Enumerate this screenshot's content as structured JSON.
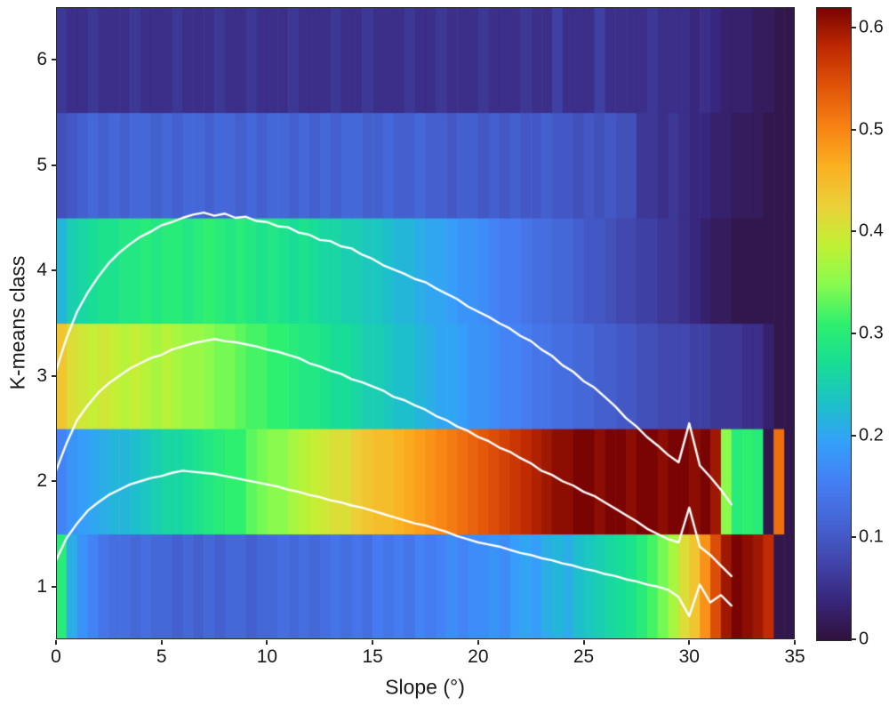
{
  "chart_data": {
    "type": "heatmap",
    "title": "",
    "xlabel": "Slope (°)",
    "ylabel": "K-means class",
    "xlim": [
      0,
      35
    ],
    "ylim": [
      0.5,
      6.5
    ],
    "xticks": [
      0,
      5,
      10,
      15,
      20,
      25,
      30,
      35
    ],
    "xtick_labels": [
      "0",
      "5",
      "10",
      "15",
      "20",
      "25",
      "30",
      "35"
    ],
    "yticks": [
      1,
      2,
      3,
      4,
      5,
      6
    ],
    "ytick_labels": [
      "1",
      "2",
      "3",
      "4",
      "5",
      "6"
    ],
    "vmin": 0,
    "vmax": 0.62,
    "background": "#ffffff",
    "text_color": "#1a1a1a",
    "x_bin_start": 0,
    "x_bin_step": 0.5,
    "colormap": {
      "name": "turbo",
      "stops": [
        "#30123b",
        "#38267c",
        "#4146ac",
        "#4565d5",
        "#457ff5",
        "#34a0fa",
        "#1dc1c9",
        "#18de94",
        "#2ef06f",
        "#88fb4e",
        "#c1f134",
        "#ecd139",
        "#fbb021",
        "#f88213",
        "#e25509",
        "#c02a02",
        "#7a0403"
      ]
    },
    "grid": {
      "row_order": "class 1 (bottom) to class 6 (top)",
      "values": [
        [
          0.3,
          0.21,
          0.18,
          0.16,
          0.14,
          0.13,
          0.13,
          0.12,
          0.13,
          0.12,
          0.12,
          0.11,
          0.12,
          0.11,
          0.12,
          0.11,
          0.12,
          0.12,
          0.11,
          0.12,
          0.12,
          0.13,
          0.12,
          0.13,
          0.12,
          0.13,
          0.14,
          0.13,
          0.14,
          0.13,
          0.15,
          0.14,
          0.15,
          0.14,
          0.16,
          0.15,
          0.16,
          0.17,
          0.16,
          0.17,
          0.17,
          0.18,
          0.17,
          0.19,
          0.2,
          0.19,
          0.21,
          0.22,
          0.21,
          0.23,
          0.24,
          0.25,
          0.26,
          0.27,
          0.28,
          0.3,
          0.32,
          0.34,
          0.37,
          0.41,
          0.44,
          0.49,
          0.55,
          0.6,
          0.62,
          0.61,
          0.6,
          0.58,
          0.01,
          0.01
        ],
        [
          0.16,
          0.18,
          0.19,
          0.2,
          0.21,
          0.22,
          0.22,
          0.23,
          0.24,
          0.25,
          0.26,
          0.26,
          0.27,
          0.28,
          0.29,
          0.3,
          0.31,
          0.31,
          0.33,
          0.34,
          0.35,
          0.35,
          0.37,
          0.38,
          0.39,
          0.4,
          0.41,
          0.41,
          0.43,
          0.44,
          0.45,
          0.45,
          0.46,
          0.47,
          0.48,
          0.49,
          0.5,
          0.51,
          0.52,
          0.53,
          0.54,
          0.55,
          0.56,
          0.57,
          0.58,
          0.59,
          0.6,
          0.61,
          0.61,
          0.62,
          0.62,
          0.61,
          0.62,
          0.62,
          0.61,
          0.62,
          0.62,
          0.61,
          0.62,
          0.62,
          0.61,
          0.62,
          0.6,
          0.35,
          0.3,
          0.31,
          0.3,
          0.01,
          0.52,
          0.01
        ],
        [
          0.44,
          0.41,
          0.4,
          0.39,
          0.4,
          0.39,
          0.38,
          0.39,
          0.38,
          0.37,
          0.38,
          0.37,
          0.36,
          0.36,
          0.35,
          0.34,
          0.34,
          0.33,
          0.32,
          0.32,
          0.31,
          0.31,
          0.3,
          0.29,
          0.29,
          0.28,
          0.27,
          0.27,
          0.26,
          0.25,
          0.25,
          0.24,
          0.23,
          0.23,
          0.22,
          0.21,
          0.2,
          0.2,
          0.19,
          0.18,
          0.18,
          0.17,
          0.16,
          0.16,
          0.15,
          0.14,
          0.14,
          0.13,
          0.13,
          0.12,
          0.12,
          0.11,
          0.11,
          0.1,
          0.1,
          0.09,
          0.09,
          0.08,
          0.08,
          0.08,
          0.07,
          0.07,
          0.06,
          0.06,
          0.06,
          0.05,
          0.05,
          0.03,
          0.01,
          0.01
        ],
        [
          0.22,
          0.25,
          0.26,
          0.27,
          0.28,
          0.28,
          0.29,
          0.29,
          0.3,
          0.29,
          0.3,
          0.3,
          0.29,
          0.3,
          0.31,
          0.3,
          0.29,
          0.3,
          0.29,
          0.28,
          0.29,
          0.28,
          0.27,
          0.28,
          0.27,
          0.26,
          0.26,
          0.25,
          0.25,
          0.24,
          0.24,
          0.23,
          0.22,
          0.22,
          0.21,
          0.2,
          0.2,
          0.19,
          0.18,
          0.18,
          0.17,
          0.16,
          0.15,
          0.15,
          0.14,
          0.13,
          0.13,
          0.12,
          0.12,
          0.11,
          0.1,
          0.1,
          0.09,
          0.08,
          0.08,
          0.07,
          0.07,
          0.06,
          0.06,
          0.05,
          0.04,
          0.03,
          0.02,
          0.02,
          0.01,
          0.01,
          0.01,
          0.01,
          0.01,
          0.01
        ],
        [
          0.09,
          0.1,
          0.11,
          0.12,
          0.11,
          0.12,
          0.11,
          0.12,
          0.12,
          0.11,
          0.12,
          0.11,
          0.12,
          0.12,
          0.11,
          0.12,
          0.12,
          0.11,
          0.12,
          0.11,
          0.12,
          0.12,
          0.11,
          0.12,
          0.11,
          0.12,
          0.11,
          0.12,
          0.12,
          0.11,
          0.11,
          0.12,
          0.11,
          0.11,
          0.12,
          0.11,
          0.11,
          0.1,
          0.11,
          0.11,
          0.1,
          0.11,
          0.1,
          0.11,
          0.1,
          0.1,
          0.11,
          0.1,
          0.1,
          0.09,
          0.1,
          0.09,
          0.1,
          0.09,
          0.09,
          0.06,
          0.06,
          0.05,
          0.06,
          0.05,
          0.04,
          0.04,
          0.03,
          0.03,
          0.02,
          0.02,
          0.02,
          0.01,
          0.01,
          0.01
        ],
        [
          0.06,
          0.05,
          0.05,
          0.06,
          0.05,
          0.05,
          0.05,
          0.06,
          0.05,
          0.05,
          0.05,
          0.06,
          0.05,
          0.05,
          0.05,
          0.06,
          0.05,
          0.05,
          0.06,
          0.05,
          0.05,
          0.05,
          0.06,
          0.05,
          0.05,
          0.05,
          0.06,
          0.05,
          0.05,
          0.06,
          0.05,
          0.05,
          0.05,
          0.06,
          0.05,
          0.05,
          0.06,
          0.05,
          0.05,
          0.05,
          0.06,
          0.05,
          0.05,
          0.05,
          0.06,
          0.05,
          0.05,
          0.07,
          0.05,
          0.05,
          0.05,
          0.07,
          0.05,
          0.05,
          0.05,
          0.05,
          0.06,
          0.05,
          0.05,
          0.05,
          0.04,
          0.05,
          0.04,
          0.03,
          0.03,
          0.03,
          0.02,
          0.02,
          0.01,
          0.01
        ]
      ]
    },
    "overlay_lines": {
      "color": "#ffffff",
      "x_start": 0,
      "x_step": 0.5,
      "series": [
        {
          "name": "upper-curve",
          "values": [
            3.05,
            3.36,
            3.61,
            3.79,
            3.94,
            4.07,
            4.17,
            4.25,
            4.32,
            4.37,
            4.43,
            4.46,
            4.5,
            4.53,
            4.55,
            4.52,
            4.54,
            4.5,
            4.51,
            4.47,
            4.46,
            4.42,
            4.41,
            4.36,
            4.34,
            4.29,
            4.28,
            4.23,
            4.21,
            4.15,
            4.11,
            4.05,
            4.01,
            3.97,
            3.92,
            3.89,
            3.83,
            3.78,
            3.73,
            3.66,
            3.61,
            3.56,
            3.5,
            3.45,
            3.38,
            3.33,
            3.25,
            3.19,
            3.1,
            3.04,
            2.95,
            2.89,
            2.8,
            2.71,
            2.6,
            2.52,
            2.42,
            2.34,
            2.25,
            2.18,
            2.55,
            2.15,
            2.04,
            1.92,
            1.78
          ]
        },
        {
          "name": "middle-curve",
          "values": [
            2.1,
            2.36,
            2.58,
            2.72,
            2.84,
            2.93,
            3.0,
            3.07,
            3.12,
            3.17,
            3.2,
            3.25,
            3.28,
            3.31,
            3.33,
            3.35,
            3.33,
            3.32,
            3.3,
            3.28,
            3.25,
            3.23,
            3.2,
            3.17,
            3.12,
            3.09,
            3.05,
            3.02,
            2.97,
            2.94,
            2.9,
            2.86,
            2.8,
            2.77,
            2.72,
            2.68,
            2.62,
            2.58,
            2.52,
            2.48,
            2.42,
            2.38,
            2.32,
            2.28,
            2.22,
            2.17,
            2.1,
            2.06,
            2.0,
            1.96,
            1.9,
            1.86,
            1.8,
            1.74,
            1.68,
            1.62,
            1.55,
            1.5,
            1.45,
            1.42,
            1.75,
            1.38,
            1.3,
            1.2,
            1.1
          ]
        },
        {
          "name": "lower-curve",
          "values": [
            1.25,
            1.46,
            1.6,
            1.72,
            1.8,
            1.87,
            1.92,
            1.97,
            2.0,
            2.03,
            2.05,
            2.08,
            2.1,
            2.09,
            2.08,
            2.07,
            2.05,
            2.03,
            2.01,
            1.99,
            1.97,
            1.95,
            1.92,
            1.9,
            1.87,
            1.85,
            1.82,
            1.8,
            1.77,
            1.75,
            1.72,
            1.69,
            1.66,
            1.63,
            1.6,
            1.58,
            1.55,
            1.52,
            1.48,
            1.45,
            1.42,
            1.4,
            1.38,
            1.35,
            1.32,
            1.3,
            1.27,
            1.25,
            1.22,
            1.2,
            1.17,
            1.15,
            1.12,
            1.1,
            1.07,
            1.05,
            1.02,
            1.0,
            0.97,
            0.9,
            0.72,
            1.02,
            0.85,
            0.92,
            0.82
          ]
        }
      ]
    },
    "colorbar": {
      "position": "right",
      "ticks": [
        0,
        0.1,
        0.2,
        0.3,
        0.4,
        0.5,
        0.6
      ],
      "tick_labels": [
        "0",
        "0.1",
        "0.2",
        "0.3",
        "0.4",
        "0.5",
        "0.6"
      ]
    },
    "legend": "off",
    "grid_lines": "off"
  }
}
